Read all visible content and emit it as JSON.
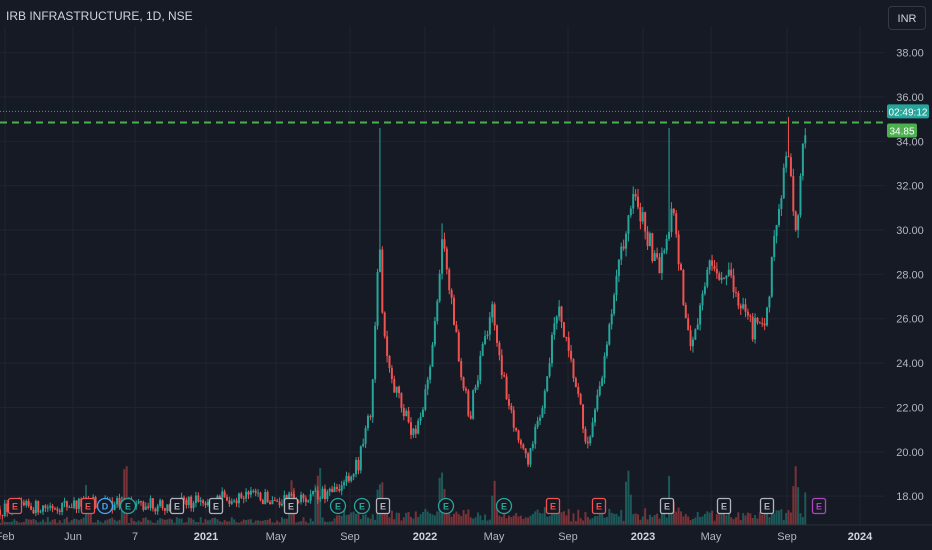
{
  "header": {
    "title": "IRB INFRASTRUCTURE, 1D, NSE",
    "currency_button": "INR"
  },
  "colors": {
    "background": "#161a25",
    "grid": "#1f2430",
    "text": "#b2b5be",
    "up": "#26a69a",
    "down": "#ef5350",
    "level_line": "#4caf50",
    "price_tag": "#26a69a",
    "level_tag": "#4caf50",
    "earnings_red": "#ef5350",
    "earnings_gray": "#b2b5be",
    "dividend_blue": "#42a5f5",
    "split_green": "#26a69a",
    "earnings_purple": "#ab47bc"
  },
  "chart_data": {
    "type": "candlestick",
    "y_axis": {
      "range": [
        16.7,
        39.2
      ],
      "ticks": [
        "38.00",
        "36.00",
        "34.00",
        "32.00",
        "30.00",
        "28.00",
        "26.00",
        "24.00",
        "22.00",
        "20.00",
        "18.00"
      ]
    },
    "x_axis": {
      "ticks": [
        {
          "label": "Feb",
          "bold": false
        },
        {
          "label": "Jun",
          "bold": false
        },
        {
          "label": "7",
          "bold": false
        },
        {
          "label": "2021",
          "bold": true
        },
        {
          "label": "May",
          "bold": false
        },
        {
          "label": "Sep",
          "bold": false
        },
        {
          "label": "2022",
          "bold": true
        },
        {
          "label": "May",
          "bold": false
        },
        {
          "label": "Sep",
          "bold": false
        },
        {
          "label": "2023",
          "bold": true
        },
        {
          "label": "May",
          "bold": false
        },
        {
          "label": "Sep",
          "bold": false
        },
        {
          "label": "2024",
          "bold": true
        }
      ]
    },
    "price_anchors": [
      {
        "t": 0.0,
        "p": 17.4
      },
      {
        "t": 0.11,
        "p": 17.7
      },
      {
        "t": 0.19,
        "p": 17.6
      },
      {
        "t": 0.27,
        "p": 18.0
      },
      {
        "t": 0.33,
        "p": 17.8
      },
      {
        "t": 0.385,
        "p": 18.2
      },
      {
        "t": 0.405,
        "p": 19.5
      },
      {
        "t": 0.42,
        "p": 22.0
      },
      {
        "t": 0.428,
        "p": 30.0
      },
      {
        "t": 0.433,
        "p": 25.5
      },
      {
        "t": 0.445,
        "p": 23.0
      },
      {
        "t": 0.47,
        "p": 20.5
      },
      {
        "t": 0.49,
        "p": 25.0
      },
      {
        "t": 0.5,
        "p": 30.0
      },
      {
        "t": 0.52,
        "p": 24.0
      },
      {
        "t": 0.53,
        "p": 21.5
      },
      {
        "t": 0.555,
        "p": 26.5
      },
      {
        "t": 0.575,
        "p": 22.0
      },
      {
        "t": 0.595,
        "p": 19.5
      },
      {
        "t": 0.61,
        "p": 21.5
      },
      {
        "t": 0.63,
        "p": 26.5
      },
      {
        "t": 0.65,
        "p": 23.0
      },
      {
        "t": 0.665,
        "p": 20.0
      },
      {
        "t": 0.685,
        "p": 24.5
      },
      {
        "t": 0.7,
        "p": 28.5
      },
      {
        "t": 0.715,
        "p": 31.5
      },
      {
        "t": 0.73,
        "p": 30.0
      },
      {
        "t": 0.745,
        "p": 28.0
      },
      {
        "t": 0.76,
        "p": 31.0
      },
      {
        "t": 0.78,
        "p": 24.5
      },
      {
        "t": 0.8,
        "p": 28.5
      },
      {
        "t": 0.82,
        "p": 28.0
      },
      {
        "t": 0.835,
        "p": 27.0
      },
      {
        "t": 0.85,
        "p": 25.5
      },
      {
        "t": 0.865,
        "p": 26.0
      },
      {
        "t": 0.88,
        "p": 31.0
      },
      {
        "t": 0.89,
        "p": 33.5
      },
      {
        "t": 0.9,
        "p": 30.0
      },
      {
        "t": 0.91,
        "p": 34.8
      }
    ],
    "spikes": [
      {
        "t": 0.428,
        "high": 34.6
      },
      {
        "t": 0.5,
        "high": 30.3
      },
      {
        "t": 0.757,
        "high": 34.6
      },
      {
        "t": 0.892,
        "high": 35.1
      },
      {
        "t": 0.913,
        "high": 36.6
      }
    ],
    "volume_spikes": [
      0.1,
      0.14,
      0.33,
      0.36,
      0.43,
      0.5,
      0.56,
      0.71,
      0.76,
      0.9,
      0.912
    ],
    "current_price": {
      "value": 34.85,
      "label": "34.85",
      "countdown": "02:49:12",
      "last_high": 35.35
    },
    "horizontal_level": {
      "value": 34.85,
      "style": "dashed"
    },
    "events": [
      {
        "letter": "E",
        "kind": "earnings_red"
      },
      {
        "letter": "E",
        "kind": "earnings_red"
      },
      {
        "letter": "D",
        "kind": "dividend_blue"
      },
      {
        "letter": "E",
        "kind": "split_green"
      },
      {
        "letter": "E",
        "kind": "earnings_gray"
      },
      {
        "letter": "E",
        "kind": "earnings_gray"
      },
      {
        "letter": "E",
        "kind": "earnings_gray"
      },
      {
        "letter": "E",
        "kind": "split_green"
      },
      {
        "letter": "E",
        "kind": "split_green"
      },
      {
        "letter": "E",
        "kind": "earnings_gray"
      },
      {
        "letter": "E",
        "kind": "split_green"
      },
      {
        "letter": "E",
        "kind": "split_green"
      },
      {
        "letter": "E",
        "kind": "earnings_red"
      },
      {
        "letter": "E",
        "kind": "earnings_red"
      },
      {
        "letter": "E",
        "kind": "earnings_gray"
      },
      {
        "letter": "E",
        "kind": "earnings_gray"
      },
      {
        "letter": "E",
        "kind": "earnings_gray"
      },
      {
        "letter": "E",
        "kind": "earnings_purple"
      }
    ]
  }
}
